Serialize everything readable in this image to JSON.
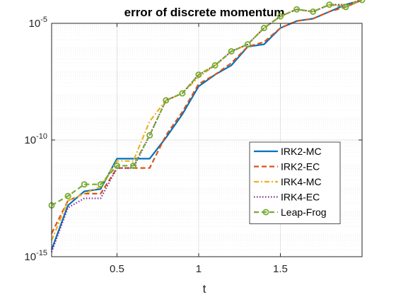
{
  "chart_data": {
    "type": "line",
    "title": "error of discrete momentum",
    "xlabel": "t",
    "ylabel": "",
    "xlim": [
      0.1,
      2.0
    ],
    "ylim_log10": [
      -15,
      -5
    ],
    "yscale": "log",
    "grid": true,
    "minor_grid_y": true,
    "legend_position": "right-middle",
    "x_ticks": [
      0.5,
      1,
      1.5
    ],
    "x_tick_labels": [
      "0.5",
      "1",
      "1.5"
    ],
    "y_ticks_log10": [
      -15,
      -10,
      -5
    ],
    "y_tick_base": "10",
    "y_tick_exponents": [
      "-15",
      "-10",
      "-5"
    ],
    "series": [
      {
        "name": "IRK2-MC",
        "color": "#0072BD",
        "style": "solid",
        "marker": "none",
        "x": [
          0.1,
          0.2,
          0.3,
          0.4,
          0.5,
          0.6,
          0.7,
          0.8,
          0.9,
          1.0,
          1.1,
          1.2,
          1.3,
          1.4,
          1.5,
          1.6,
          1.7,
          1.8,
          1.9,
          2.0
        ],
        "log10_y": [
          -14.7,
          -12.8,
          -12.2,
          -12.1,
          -10.8,
          -10.8,
          -10.8,
          -9.9,
          -8.9,
          -7.7,
          -7.2,
          -6.8,
          -6.0,
          -5.9,
          -5.2,
          -4.9,
          -4.8,
          -4.5,
          -4.2,
          -4.0
        ]
      },
      {
        "name": "IRK2-EC",
        "color": "#D95319",
        "style": "dashed",
        "marker": "none",
        "x": [
          0.1,
          0.2,
          0.3,
          0.4,
          0.5,
          0.6,
          0.7,
          0.8,
          0.9,
          1.0,
          1.1,
          1.2,
          1.3,
          1.4,
          1.5,
          1.6,
          1.7,
          1.8,
          1.9,
          2.0
        ],
        "log10_y": [
          -14.0,
          -12.6,
          -12.3,
          -12.3,
          -11.2,
          -11.2,
          -11.2,
          -9.8,
          -8.8,
          -7.6,
          -7.2,
          -6.7,
          -6.0,
          -5.8,
          -5.2,
          -4.9,
          -4.8,
          -4.5,
          -4.3,
          -4.0
        ]
      },
      {
        "name": "IRK4-MC",
        "color": "#EDB120",
        "style": "dashdot",
        "marker": "none",
        "x": [
          0.1,
          0.2,
          0.3,
          0.4,
          0.5,
          0.6,
          0.7,
          0.8,
          0.9,
          1.0,
          1.1,
          1.2,
          1.3,
          1.4,
          1.5,
          1.6,
          1.7,
          1.8,
          1.9,
          2.0
        ],
        "log10_y": [
          -14.3,
          -12.6,
          -12.3,
          -12.0,
          -10.9,
          -10.9,
          -9.2,
          -8.3,
          -8.0,
          -7.3,
          -6.8,
          -6.2,
          -5.9,
          -5.2,
          -4.7,
          -4.4,
          -4.5,
          -4.2,
          -4.2,
          -4.0
        ]
      },
      {
        "name": "IRK4-EC",
        "color": "#7E2F8E",
        "style": "dotted",
        "marker": "none",
        "x": [
          0.1,
          0.2,
          0.3,
          0.4,
          0.5,
          0.6,
          0.7,
          0.8,
          0.9,
          1.0,
          1.1,
          1.2,
          1.3,
          1.4,
          1.5,
          1.6,
          1.7,
          1.8,
          1.9,
          2.0
        ],
        "log10_y": [
          -14.8,
          -12.9,
          -12.5,
          -12.5,
          -11.2,
          -11.2,
          -9.8,
          -8.3,
          -8.0,
          -7.2,
          -6.8,
          -6.2,
          -5.9,
          -5.2,
          -4.7,
          -4.4,
          -4.5,
          -4.2,
          -4.2,
          -4.0
        ]
      },
      {
        "name": "Leap-Frog",
        "color": "#77AC30",
        "style": "dashed",
        "marker": "circle",
        "x": [
          0.1,
          0.2,
          0.3,
          0.4,
          0.5,
          0.6,
          0.7,
          0.8,
          0.9,
          1.0,
          1.1,
          1.2,
          1.3,
          1.4,
          1.5,
          1.6,
          1.7,
          1.8,
          1.9,
          2.0
        ],
        "log10_y": [
          -12.8,
          -12.4,
          -11.9,
          -11.9,
          -11.1,
          -11.1,
          -9.8,
          -8.3,
          -8.0,
          -7.2,
          -6.8,
          -6.2,
          -5.9,
          -5.2,
          -4.7,
          -4.4,
          -4.5,
          -4.2,
          -4.3,
          -4.0
        ]
      }
    ]
  }
}
